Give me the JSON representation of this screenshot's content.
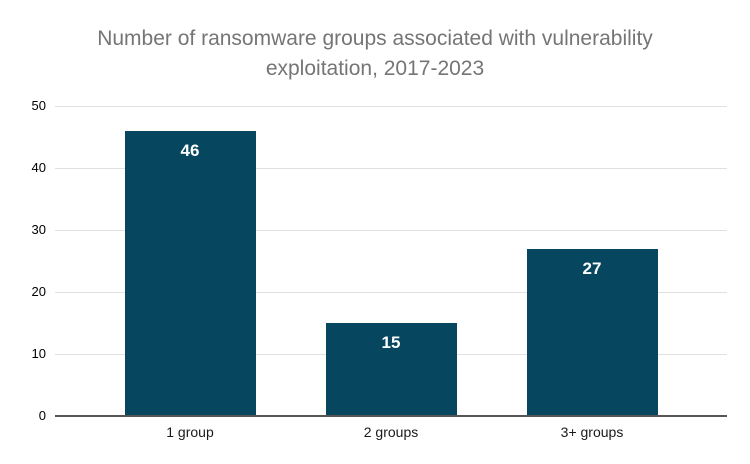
{
  "header": {
    "title_line1": "Number of ransomware groups associated with vulnerability",
    "title_line2": "exploitation, 2017-2023"
  },
  "chart_data": {
    "type": "bar",
    "title": "Number of ransomware groups associated with vulnerability exploitation, 2017-2023",
    "categories": [
      "1 group",
      "2 groups",
      "3+ groups"
    ],
    "values": [
      46,
      15,
      27
    ],
    "value_labels": [
      "46",
      "15",
      "27"
    ],
    "ytick_labels": [
      "0",
      "10",
      "20",
      "30",
      "40",
      "50"
    ],
    "yticks": [
      0,
      10,
      20,
      30,
      40,
      50
    ],
    "ylim": [
      0,
      50
    ],
    "xlabel": "",
    "ylabel": "",
    "grid": true,
    "legend": "none",
    "colors": {
      "bar": "#06465f",
      "value_label": "#ffffff",
      "title": "#757575",
      "gridline": "#e0e0e0",
      "axis_line": "#555555",
      "ytick_label": "#000000",
      "xtick_label": "#1a1a1a",
      "background": "#ffffff"
    }
  }
}
